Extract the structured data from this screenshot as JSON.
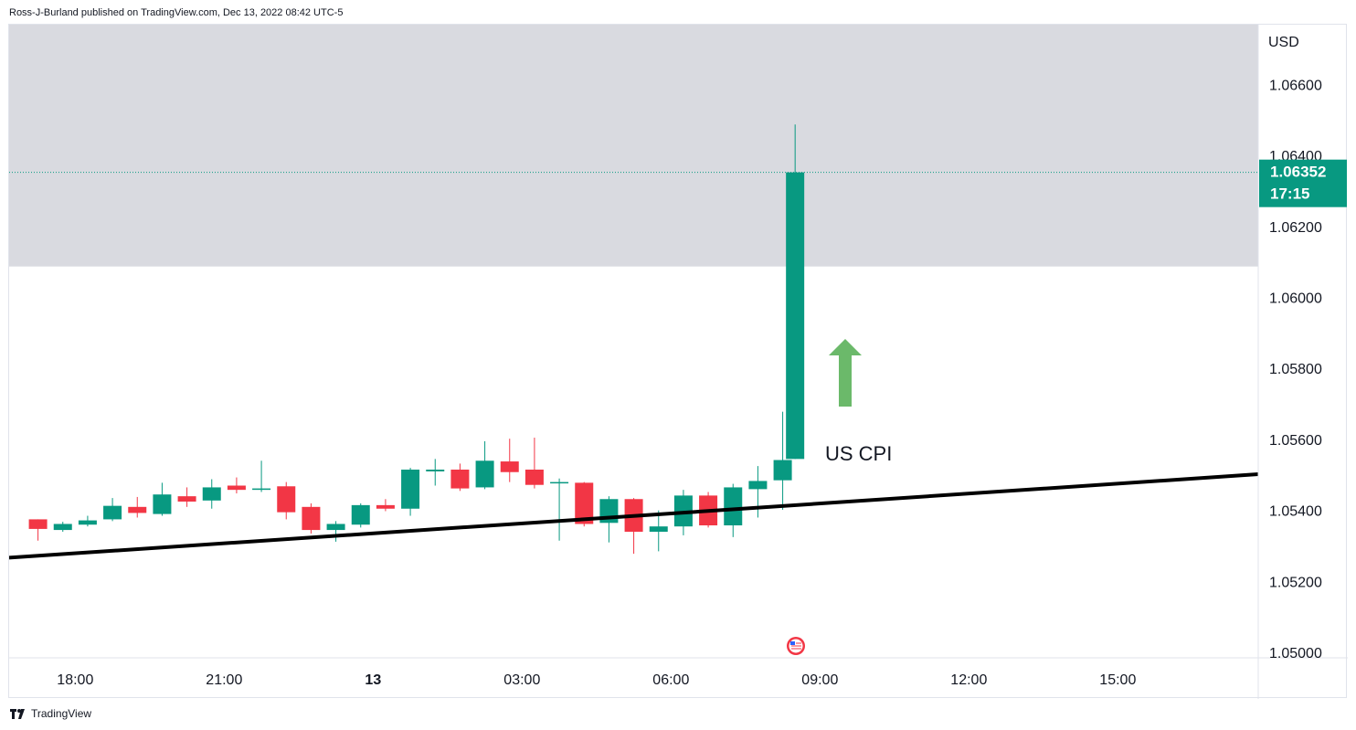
{
  "header": {
    "publisher_text": "Ross-J-Burland published on TradingView.com, Dec 13, 2022 08:42 UTC-5"
  },
  "footer": {
    "brand": "TradingView"
  },
  "colors": {
    "up": "#089981",
    "down": "#f23645",
    "zone": "#d9dae0",
    "trendline": "#000000",
    "arrow": "#6bb96a",
    "price_tag": "#089981"
  },
  "chart_data": {
    "type": "candlestick",
    "currency_label": "USD",
    "y_ticks": [
      "1.06600",
      "1.06400",
      "1.06200",
      "1.06000",
      "1.05800",
      "1.05600",
      "1.05400",
      "1.05200",
      "1.05000"
    ],
    "x_ticks": [
      "18:00",
      "21:00",
      "13",
      "03:00",
      "06:00",
      "09:00",
      "12:00",
      "15:00"
    ],
    "ylim": [
      1.04985,
      1.06768
    ],
    "last_price": {
      "price": "1.06352",
      "countdown": "17:15",
      "value": 1.06352
    },
    "resistance_zone": {
      "from": 1.06087,
      "to": 1.07
    },
    "trendline": {
      "start": {
        "x": "17:00",
        "y": 1.05267
      },
      "end": {
        "x": "17:30 next",
        "y": 1.05502
      }
    },
    "annotations": [
      {
        "text": "US CPI",
        "near": "08:30"
      }
    ],
    "event_marker": {
      "name": "us-flag-icon",
      "near": "08:30"
    },
    "grid": false,
    "candles": [
      {
        "t": "17:15",
        "o": 1.05375,
        "h": 1.05375,
        "l": 1.05315,
        "c": 1.05348
      },
      {
        "t": "17:45",
        "o": 1.05345,
        "h": 1.05368,
        "l": 1.0534,
        "c": 1.05362
      },
      {
        "t": "18:15",
        "o": 1.0536,
        "h": 1.05385,
        "l": 1.05355,
        "c": 1.05372
      },
      {
        "t": "18:45",
        "o": 1.05375,
        "h": 1.05435,
        "l": 1.0537,
        "c": 1.05413
      },
      {
        "t": "19:15",
        "o": 1.0541,
        "h": 1.05438,
        "l": 1.0538,
        "c": 1.05393
      },
      {
        "t": "19:45",
        "o": 1.0539,
        "h": 1.05478,
        "l": 1.05385,
        "c": 1.05445
      },
      {
        "t": "20:15",
        "o": 1.0544,
        "h": 1.05465,
        "l": 1.0541,
        "c": 1.05425
      },
      {
        "t": "20:45",
        "o": 1.05428,
        "h": 1.05488,
        "l": 1.05405,
        "c": 1.05465
      },
      {
        "t": "21:15",
        "o": 1.0547,
        "h": 1.05493,
        "l": 1.05448,
        "c": 1.05458
      },
      {
        "t": "21:45",
        "o": 1.05458,
        "h": 1.0554,
        "l": 1.05452,
        "c": 1.05462
      },
      {
        "t": "22:15",
        "o": 1.05468,
        "h": 1.0548,
        "l": 1.05375,
        "c": 1.05395
      },
      {
        "t": "22:45",
        "o": 1.0541,
        "h": 1.0542,
        "l": 1.05335,
        "c": 1.05345
      },
      {
        "t": "23:15",
        "o": 1.05345,
        "h": 1.0537,
        "l": 1.05312,
        "c": 1.05362
      },
      {
        "t": "23:45",
        "o": 1.0536,
        "h": 1.0542,
        "l": 1.05352,
        "c": 1.05415
      },
      {
        "t": "00:15",
        "o": 1.05415,
        "h": 1.05432,
        "l": 1.05398,
        "c": 1.05405
      },
      {
        "t": "00:45",
        "o": 1.05405,
        "h": 1.0552,
        "l": 1.05385,
        "c": 1.05515
      },
      {
        "t": "01:15",
        "o": 1.0551,
        "h": 1.05545,
        "l": 1.0547,
        "c": 1.05515
      },
      {
        "t": "01:45",
        "o": 1.05515,
        "h": 1.05532,
        "l": 1.05455,
        "c": 1.05462
      },
      {
        "t": "02:15",
        "o": 1.05465,
        "h": 1.05595,
        "l": 1.0546,
        "c": 1.0554
      },
      {
        "t": "02:45",
        "o": 1.05538,
        "h": 1.05602,
        "l": 1.0548,
        "c": 1.05508
      },
      {
        "t": "03:15",
        "o": 1.05515,
        "h": 1.05605,
        "l": 1.05462,
        "c": 1.05472
      },
      {
        "t": "03:45",
        "o": 1.05478,
        "h": 1.0549,
        "l": 1.05315,
        "c": 1.0548
      },
      {
        "t": "04:15",
        "o": 1.05478,
        "h": 1.0548,
        "l": 1.05355,
        "c": 1.05362
      },
      {
        "t": "04:45",
        "o": 1.05365,
        "h": 1.0544,
        "l": 1.0531,
        "c": 1.05432
      },
      {
        "t": "05:15",
        "o": 1.05432,
        "h": 1.05435,
        "l": 1.05278,
        "c": 1.0534
      },
      {
        "t": "05:45",
        "o": 1.0534,
        "h": 1.054,
        "l": 1.05285,
        "c": 1.05355
      },
      {
        "t": "06:15",
        "o": 1.05355,
        "h": 1.05458,
        "l": 1.0533,
        "c": 1.05442
      },
      {
        "t": "06:45",
        "o": 1.05442,
        "h": 1.05452,
        "l": 1.05352,
        "c": 1.05358
      },
      {
        "t": "07:15",
        "o": 1.05358,
        "h": 1.05475,
        "l": 1.05325,
        "c": 1.05465
      },
      {
        "t": "07:45",
        "o": 1.0546,
        "h": 1.05525,
        "l": 1.0538,
        "c": 1.05483
      },
      {
        "t": "08:15",
        "o": 1.05485,
        "h": 1.05678,
        "l": 1.05402,
        "c": 1.05542
      },
      {
        "t": "08:30",
        "o": 1.05545,
        "h": 1.06487,
        "l": 1.05545,
        "c": 1.06352
      }
    ]
  }
}
